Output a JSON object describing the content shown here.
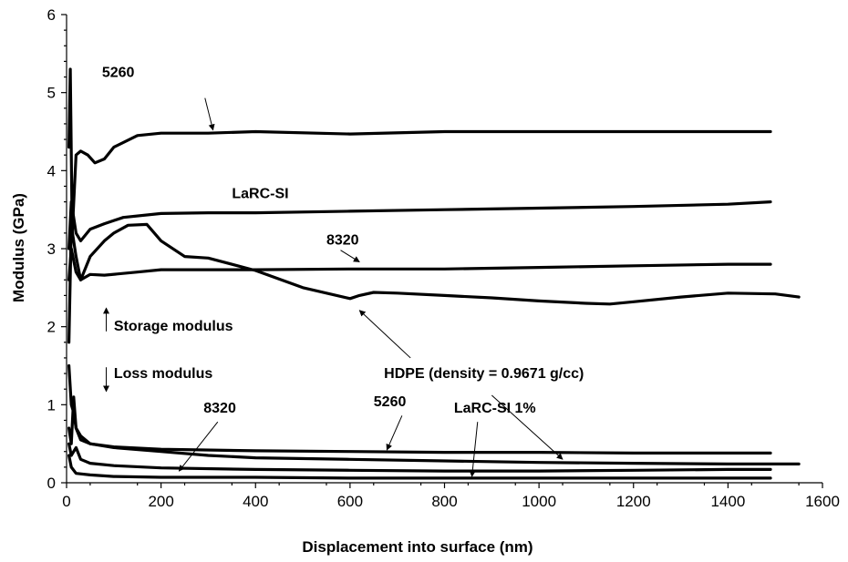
{
  "chart_data": {
    "type": "line",
    "title": "",
    "xlabel": "Displacement into surface (nm)",
    "ylabel": "Modulus (GPa)",
    "xlim": [
      0,
      1600
    ],
    "ylim": [
      0,
      6
    ],
    "xticks": [
      "0",
      "200",
      "400",
      "600",
      "800",
      "1000",
      "1200",
      "1400",
      "1600"
    ],
    "yticks": [
      "0",
      "1",
      "2",
      "3",
      "4",
      "5",
      "6"
    ],
    "grid": false,
    "legend": "none",
    "series": [
      {
        "name": "5260",
        "kind": "storage",
        "x": [
          5,
          8,
          12,
          20,
          30,
          45,
          60,
          80,
          100,
          150,
          200,
          300,
          400,
          600,
          800,
          1000,
          1200,
          1400,
          1490
        ],
        "y": [
          4.3,
          5.3,
          3.2,
          4.2,
          4.25,
          4.2,
          4.1,
          4.15,
          4.3,
          4.45,
          4.48,
          4.48,
          4.5,
          4.47,
          4.5,
          4.5,
          4.5,
          4.5,
          4.5
        ]
      },
      {
        "name": "LaRC-SI",
        "kind": "storage",
        "x": [
          5,
          10,
          20,
          30,
          50,
          80,
          120,
          200,
          300,
          400,
          600,
          800,
          1000,
          1200,
          1400,
          1490
        ],
        "y": [
          3.0,
          3.6,
          3.2,
          3.1,
          3.25,
          3.32,
          3.4,
          3.45,
          3.46,
          3.46,
          3.48,
          3.5,
          3.52,
          3.54,
          3.57,
          3.6
        ]
      },
      {
        "name": "8320",
        "kind": "storage",
        "x": [
          5,
          10,
          20,
          30,
          50,
          80,
          150,
          200,
          300,
          400,
          600,
          800,
          1000,
          1200,
          1400,
          1490
        ],
        "y": [
          1.8,
          3.3,
          2.9,
          2.6,
          2.67,
          2.66,
          2.7,
          2.73,
          2.73,
          2.73,
          2.74,
          2.74,
          2.76,
          2.78,
          2.8,
          2.8
        ]
      },
      {
        "name": "HDPE (density = 0.9671 g/cc)",
        "kind": "storage",
        "x": [
          5,
          10,
          20,
          30,
          50,
          80,
          100,
          130,
          170,
          200,
          250,
          300,
          400,
          500,
          600,
          620,
          650,
          700,
          800,
          900,
          1000,
          1100,
          1150,
          1200,
          1300,
          1400,
          1500,
          1550
        ],
        "y": [
          2.6,
          3.0,
          2.7,
          2.6,
          2.9,
          3.1,
          3.2,
          3.3,
          3.31,
          3.1,
          2.9,
          2.88,
          2.72,
          2.5,
          2.36,
          2.4,
          2.44,
          2.43,
          2.4,
          2.37,
          2.33,
          2.3,
          2.29,
          2.32,
          2.38,
          2.43,
          2.42,
          2.38
        ]
      },
      {
        "name": "5260",
        "kind": "loss",
        "x": [
          5,
          10,
          15,
          20,
          30,
          50,
          100,
          200,
          400,
          600,
          800,
          1000,
          1200,
          1400,
          1490
        ],
        "y": [
          0.7,
          0.5,
          1.1,
          0.7,
          0.55,
          0.5,
          0.46,
          0.43,
          0.41,
          0.4,
          0.39,
          0.39,
          0.38,
          0.38,
          0.38
        ]
      },
      {
        "name": "8320",
        "kind": "loss",
        "x": [
          5,
          10,
          20,
          30,
          50,
          100,
          200,
          400,
          600,
          800,
          1000,
          1200,
          1400,
          1490
        ],
        "y": [
          0.5,
          0.35,
          0.45,
          0.3,
          0.25,
          0.22,
          0.19,
          0.17,
          0.16,
          0.15,
          0.15,
          0.16,
          0.17,
          0.17
        ]
      },
      {
        "name": "HDPE (density = 0.9671 g/cc)",
        "kind": "loss",
        "x": [
          5,
          10,
          15,
          20,
          30,
          50,
          100,
          200,
          300,
          400,
          600,
          800,
          1000,
          1200,
          1400,
          1550
        ],
        "y": [
          1.5,
          1.0,
          0.9,
          0.7,
          0.6,
          0.5,
          0.45,
          0.4,
          0.35,
          0.32,
          0.3,
          0.28,
          0.26,
          0.25,
          0.24,
          0.24
        ]
      },
      {
        "name": "LaRC-SI 1%",
        "kind": "loss",
        "x": [
          5,
          10,
          20,
          50,
          100,
          200,
          400,
          600,
          800,
          1000,
          1200,
          1400,
          1490
        ],
        "y": [
          0.35,
          0.2,
          0.12,
          0.1,
          0.08,
          0.07,
          0.07,
          0.06,
          0.06,
          0.06,
          0.06,
          0.06,
          0.06
        ]
      }
    ],
    "annotations": [
      {
        "text": "5260",
        "label_at": [
          75,
          5.2
        ],
        "arrow_from": [
          293,
          4.93
        ],
        "arrow_to": [
          310,
          4.52
        ]
      },
      {
        "text": "LaRC-SI",
        "label_at": [
          350,
          3.65
        ]
      },
      {
        "text": "8320",
        "label_at": [
          550,
          3.05
        ],
        "arrow_from": [
          580,
          2.98
        ],
        "arrow_to": [
          620,
          2.83
        ]
      },
      {
        "text": "Storage modulus",
        "label_at": [
          100,
          1.95
        ],
        "arrow_from": [
          84,
          1.94
        ],
        "arrow_to": [
          84,
          2.24
        ]
      },
      {
        "text": "Loss modulus",
        "label_at": [
          100,
          1.34
        ],
        "arrow_from": [
          84,
          1.48
        ],
        "arrow_to": [
          84,
          1.17
        ]
      },
      {
        "text": "HDPE (density = 0.9671 g/cc)",
        "label_at": [
          672,
          1.34
        ],
        "arrow_from": [
          728,
          1.6
        ],
        "arrow_to": [
          620,
          2.21
        ]
      },
      {
        "text": "HDPE (density = 0.9671 g/cc)",
        "arrow_from": [
          900,
          1.12
        ],
        "arrow_to": [
          1050,
          0.3
        ],
        "label_ref": 5
      },
      {
        "text": "8320",
        "label_at": [
          290,
          0.9
        ],
        "arrow_from": [
          320,
          0.78
        ],
        "arrow_to": [
          238,
          0.15
        ]
      },
      {
        "text": "5260",
        "label_at": [
          650,
          0.98
        ],
        "arrow_from": [
          710,
          0.86
        ],
        "arrow_to": [
          678,
          0.42
        ]
      },
      {
        "text": "LaRC-SI 1%",
        "label_at": [
          820,
          0.9
        ],
        "arrow_from": [
          870,
          0.78
        ],
        "arrow_to": [
          858,
          0.08
        ]
      }
    ]
  }
}
